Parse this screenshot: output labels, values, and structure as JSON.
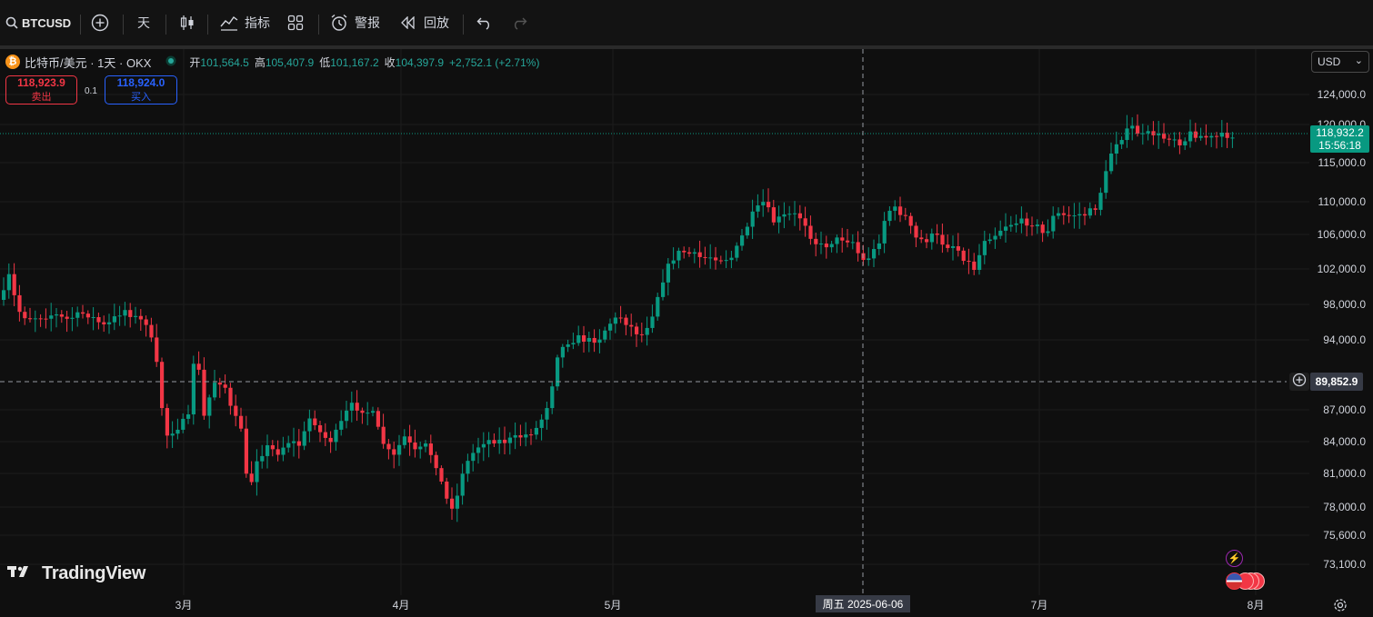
{
  "toolbar": {
    "symbol": "BTCUSD",
    "interval": "天",
    "indicators_label": "指标",
    "alerts_label": "警报",
    "replay_label": "回放"
  },
  "legend": {
    "title": "比特币/美元 · 1天 · OKX",
    "coin_glyph": "₿",
    "open_key": "开",
    "open": "101,564.5",
    "high_key": "高",
    "high": "105,407.9",
    "low_key": "低",
    "low": "101,167.2",
    "close_key": "收",
    "close": "104,397.9",
    "change": "+2,752.1 (+2.71%)"
  },
  "trade": {
    "sell_price": "118,923.9",
    "sell_label": "卖出",
    "spread": "0.1",
    "buy_price": "118,924.0",
    "buy_label": "买入"
  },
  "currency": "USD",
  "last_price": {
    "price": "118,932.2",
    "countdown": "15:56:18"
  },
  "crosshair": {
    "price": "89,852.9",
    "date": "周五 2025-06-06"
  },
  "price_axis": [
    "124,000.0",
    "120,000.0",
    "115,000.0",
    "110,000.0",
    "106,000.0",
    "102,000.0",
    "98,000.0",
    "94,000.0",
    "87,000.0",
    "84,000.0",
    "81,000.0",
    "78,000.0",
    "75,600.0",
    "73,100.0"
  ],
  "time_axis": [
    "3月",
    "4月",
    "5月",
    "7月",
    "8月"
  ],
  "brand": "TradingView",
  "colors": {
    "up": "#089981",
    "down": "#f23645",
    "bg": "#0f0f0f",
    "grid": "#1c1c1c"
  }
}
